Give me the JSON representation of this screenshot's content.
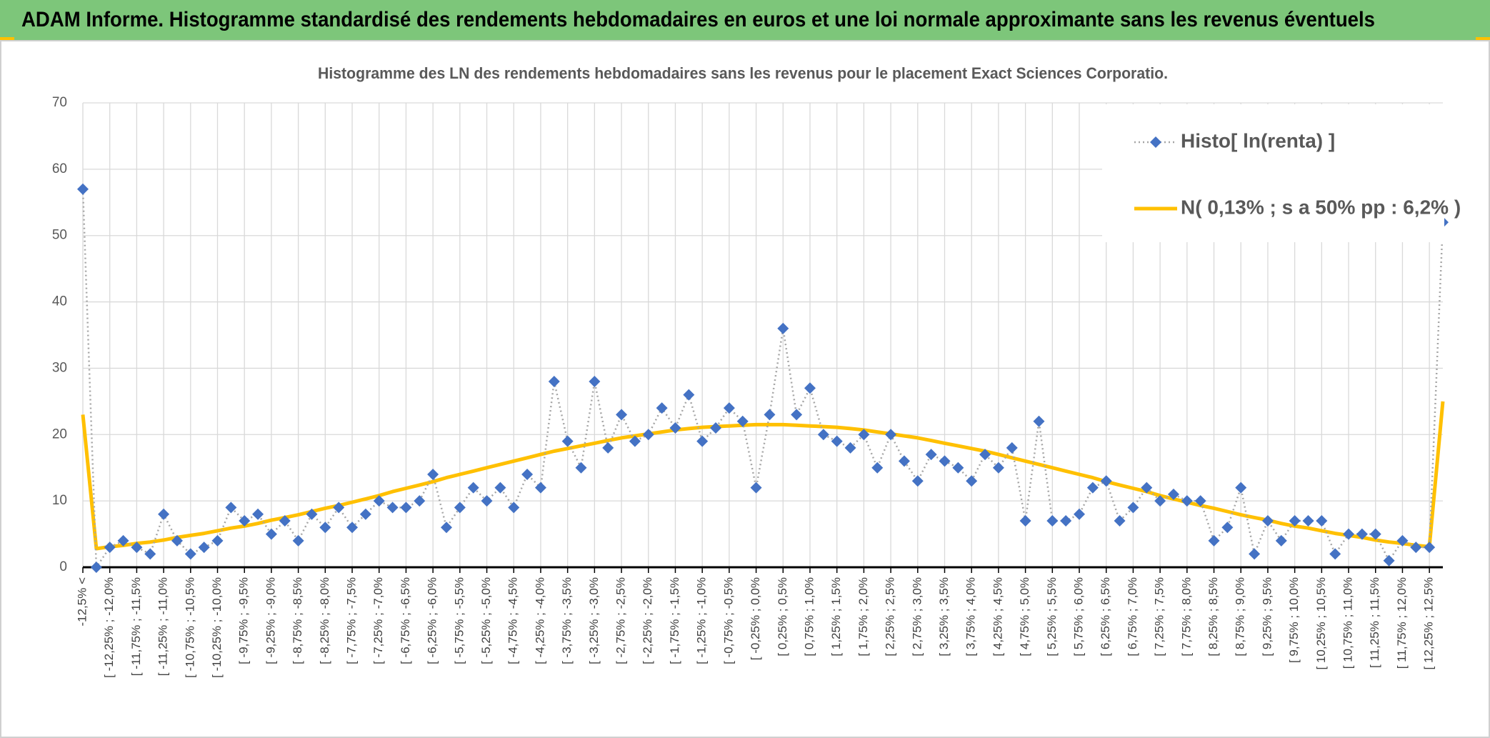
{
  "header": {
    "title": "ADAM Informe. Histogramme standardisé des rendements hebdomadaires en euros et une loi normale approximante sans les revenus éventuels"
  },
  "chart_data": {
    "type": "line",
    "title": "Histogramme des LN des rendements hebdomadaires sans les revenus pour le placement Exact Sciences Corporatio.",
    "categories": [
      "-12,5% <",
      null,
      "[ -12,25% ; -12,0%",
      null,
      "[ -11,75% ; -11,5%",
      null,
      "[ -11,25% ; -11,0%",
      null,
      "[ -10,75% ; -10,5%",
      null,
      "[ -10,25% ; -10,0%",
      null,
      "[ -9,75% ; -9,5%",
      null,
      "[ -9,25% ; -9,0%",
      null,
      "[ -8,75% ; -8,5%",
      null,
      "[ -8,25% ; -8,0%",
      null,
      "[ -7,75% ; -7,5%",
      null,
      "[ -7,25% ; -7,0%",
      null,
      "[ -6,75% ; -6,5%",
      null,
      "[ -6,25% ; -6,0%",
      null,
      "[ -5,75% ; -5,5%",
      null,
      "[ -5,25% ; -5,0%",
      null,
      "[ -4,75% ; -4,5%",
      null,
      "[ -4,25% ; -4,0%",
      null,
      "[ -3,75% ; -3,5%",
      null,
      "[ -3,25% ; -3,0%",
      null,
      "[ -2,75% ; -2,5%",
      null,
      "[ -2,25% ; -2,0%",
      null,
      "[ -1,75% ; -1,5%",
      null,
      "[ -1,25% ; -1,0%",
      null,
      "[ -0,75% ; -0,5%",
      null,
      "[ -0,25% ; 0,0%",
      null,
      "[ 0,25% ; 0,5%",
      null,
      "[ 0,75% ; 1,0%",
      null,
      "[ 1,25% ; 1,5%",
      null,
      "[ 1,75% ; 2,0%",
      null,
      "[ 2,25% ; 2,5%",
      null,
      "[ 2,75% ; 3,0%",
      null,
      "[ 3,25% ; 3,5%",
      null,
      "[ 3,75% ; 4,0%",
      null,
      "[ 4,25% ; 4,5%",
      null,
      "[ 4,75% ; 5,0%",
      null,
      "[ 5,25% ; 5,5%",
      null,
      "[ 5,75% ; 6,0%",
      null,
      "[ 6,25% ; 6,5%",
      null,
      "[ 6,75% ; 7,0%",
      null,
      "[ 7,25% ; 7,5%",
      null,
      "[ 7,75% ; 8,0%",
      null,
      "[ 8,25% ; 8,5%",
      null,
      "[ 8,75% ; 9,0%",
      null,
      "[ 9,25% ; 9,5%",
      null,
      "[ 9,75% ; 10,0%",
      null,
      "[ 10,25% ; 10,5%",
      null,
      "[ 10,75% ; 11,0%",
      null,
      "[ 11,25% ; 11,5%",
      null,
      "[ 11,75% ; 12,0%",
      null,
      "[ 12,25% ; 12,5%",
      null
    ],
    "series": [
      {
        "name": "Histo[ ln(renta) ]",
        "color": "#4472c4",
        "line_color": "#a6a6a6",
        "marker": "diamond",
        "values": [
          57,
          0,
          3,
          4,
          3,
          2,
          8,
          4,
          2,
          3,
          4,
          9,
          7,
          8,
          5,
          7,
          4,
          8,
          6,
          9,
          6,
          8,
          10,
          9,
          9,
          10,
          14,
          6,
          9,
          12,
          10,
          12,
          9,
          14,
          12,
          28,
          19,
          15,
          28,
          18,
          23,
          19,
          20,
          24,
          21,
          26,
          19,
          21,
          24,
          22,
          12,
          23,
          36,
          23,
          27,
          20,
          19,
          18,
          20,
          15,
          20,
          16,
          13,
          17,
          16,
          15,
          13,
          17,
          15,
          18,
          7,
          22,
          7,
          7,
          8,
          12,
          13,
          7,
          9,
          12,
          10,
          11,
          10,
          10,
          4,
          6,
          12,
          2,
          7,
          4,
          7,
          7,
          7,
          2,
          5,
          5,
          5,
          1,
          4,
          3,
          3,
          52
        ]
      },
      {
        "name": "N( 0,13% ; s a 50% pp : 6,2% )",
        "color": "#ffc000",
        "values": [
          23,
          2.8,
          3.1,
          3.3,
          3.6,
          3.8,
          4.1,
          4.5,
          4.8,
          5.1,
          5.5,
          5.9,
          6.2,
          6.6,
          7.1,
          7.5,
          7.9,
          8.4,
          8.9,
          9.3,
          9.8,
          10.3,
          10.8,
          11.4,
          11.9,
          12.4,
          12.9,
          13.5,
          14.0,
          14.5,
          15.0,
          15.5,
          16.0,
          16.5,
          17.0,
          17.5,
          17.9,
          18.3,
          18.7,
          19.1,
          19.5,
          19.8,
          20.1,
          20.4,
          20.7,
          20.9,
          21.1,
          21.2,
          21.3,
          21.4,
          21.5,
          21.5,
          21.5,
          21.4,
          21.3,
          21.2,
          21.1,
          20.9,
          20.7,
          20.4,
          20.1,
          19.8,
          19.5,
          19.1,
          18.7,
          18.3,
          17.9,
          17.5,
          17.0,
          16.5,
          16.0,
          15.5,
          15.0,
          14.5,
          14.0,
          13.5,
          12.9,
          12.4,
          11.9,
          11.4,
          10.8,
          10.3,
          9.8,
          9.3,
          8.9,
          8.4,
          7.9,
          7.5,
          7.1,
          6.6,
          6.2,
          5.9,
          5.5,
          5.1,
          4.8,
          4.5,
          4.1,
          3.8,
          3.6,
          3.3,
          3.1,
          25
        ]
      }
    ],
    "ylim": [
      0,
      70
    ],
    "yticks": [
      0,
      10,
      20,
      30,
      40,
      50,
      60,
      70
    ],
    "grid": true,
    "legend": "top-right"
  }
}
